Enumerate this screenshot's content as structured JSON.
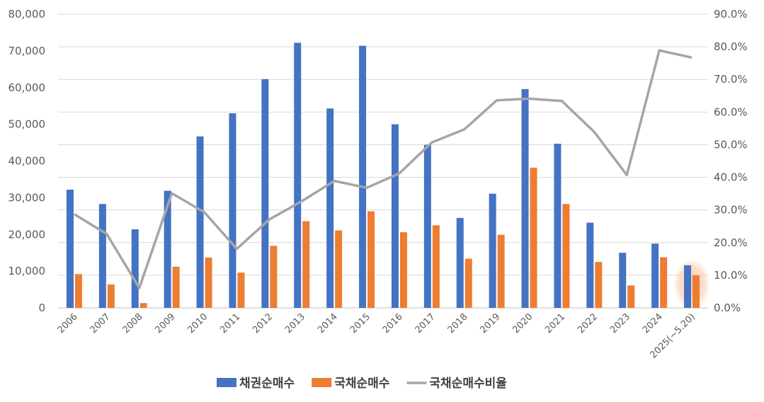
{
  "chart_data": {
    "type": "bar",
    "categories": [
      "2006",
      "2007",
      "2008",
      "2009",
      "2010",
      "2011",
      "2012",
      "2013",
      "2014",
      "2015",
      "2016",
      "2017",
      "2018",
      "2019",
      "2020",
      "2021",
      "2022",
      "2023",
      "2024",
      "2025(~5.20)"
    ],
    "series": [
      {
        "name": "채권순매수",
        "type": "bar",
        "axis": "left",
        "color": "#4472C4",
        "values": [
          32200,
          28300,
          21400,
          31900,
          46700,
          53000,
          62300,
          72200,
          54300,
          71400,
          50000,
          44400,
          24500,
          31100,
          59600,
          44700,
          23200,
          15000,
          17500,
          11600
        ]
      },
      {
        "name": "국채순매수",
        "type": "bar",
        "axis": "left",
        "color": "#ED7D31",
        "values": [
          9200,
          6400,
          1300,
          11200,
          13700,
          9600,
          16900,
          23600,
          21100,
          26300,
          20600,
          22500,
          13400,
          19900,
          38200,
          28300,
          12500,
          6100,
          13800,
          8900
        ]
      },
      {
        "name": "국채순매수비율",
        "type": "line",
        "axis": "right",
        "color": "#A5A5A5",
        "values": [
          28.7,
          22.6,
          6.1,
          35.1,
          29.3,
          18.1,
          27.1,
          32.7,
          38.9,
          36.8,
          41.2,
          50.7,
          54.7,
          63.6,
          64.1,
          63.4,
          53.9,
          40.7,
          78.9,
          76.7
        ]
      }
    ],
    "y_left": {
      "min": 0,
      "max": 80000,
      "ticks": [
        "0",
        "10,000",
        "20,000",
        "30,000",
        "40,000",
        "50,000",
        "60,000",
        "70,000",
        "80,000"
      ]
    },
    "y_right": {
      "min": 0,
      "max": 90,
      "ticks": [
        "0.0%",
        "10.0%",
        "20.0%",
        "30.0%",
        "40.0%",
        "50.0%",
        "60.0%",
        "70.0%",
        "80.0%",
        "90.0%"
      ]
    },
    "title": "",
    "grid": true,
    "legend_position": "bottom",
    "highlight_category": "2025(~5.20)",
    "highlight_color": "#F8CBAD"
  }
}
